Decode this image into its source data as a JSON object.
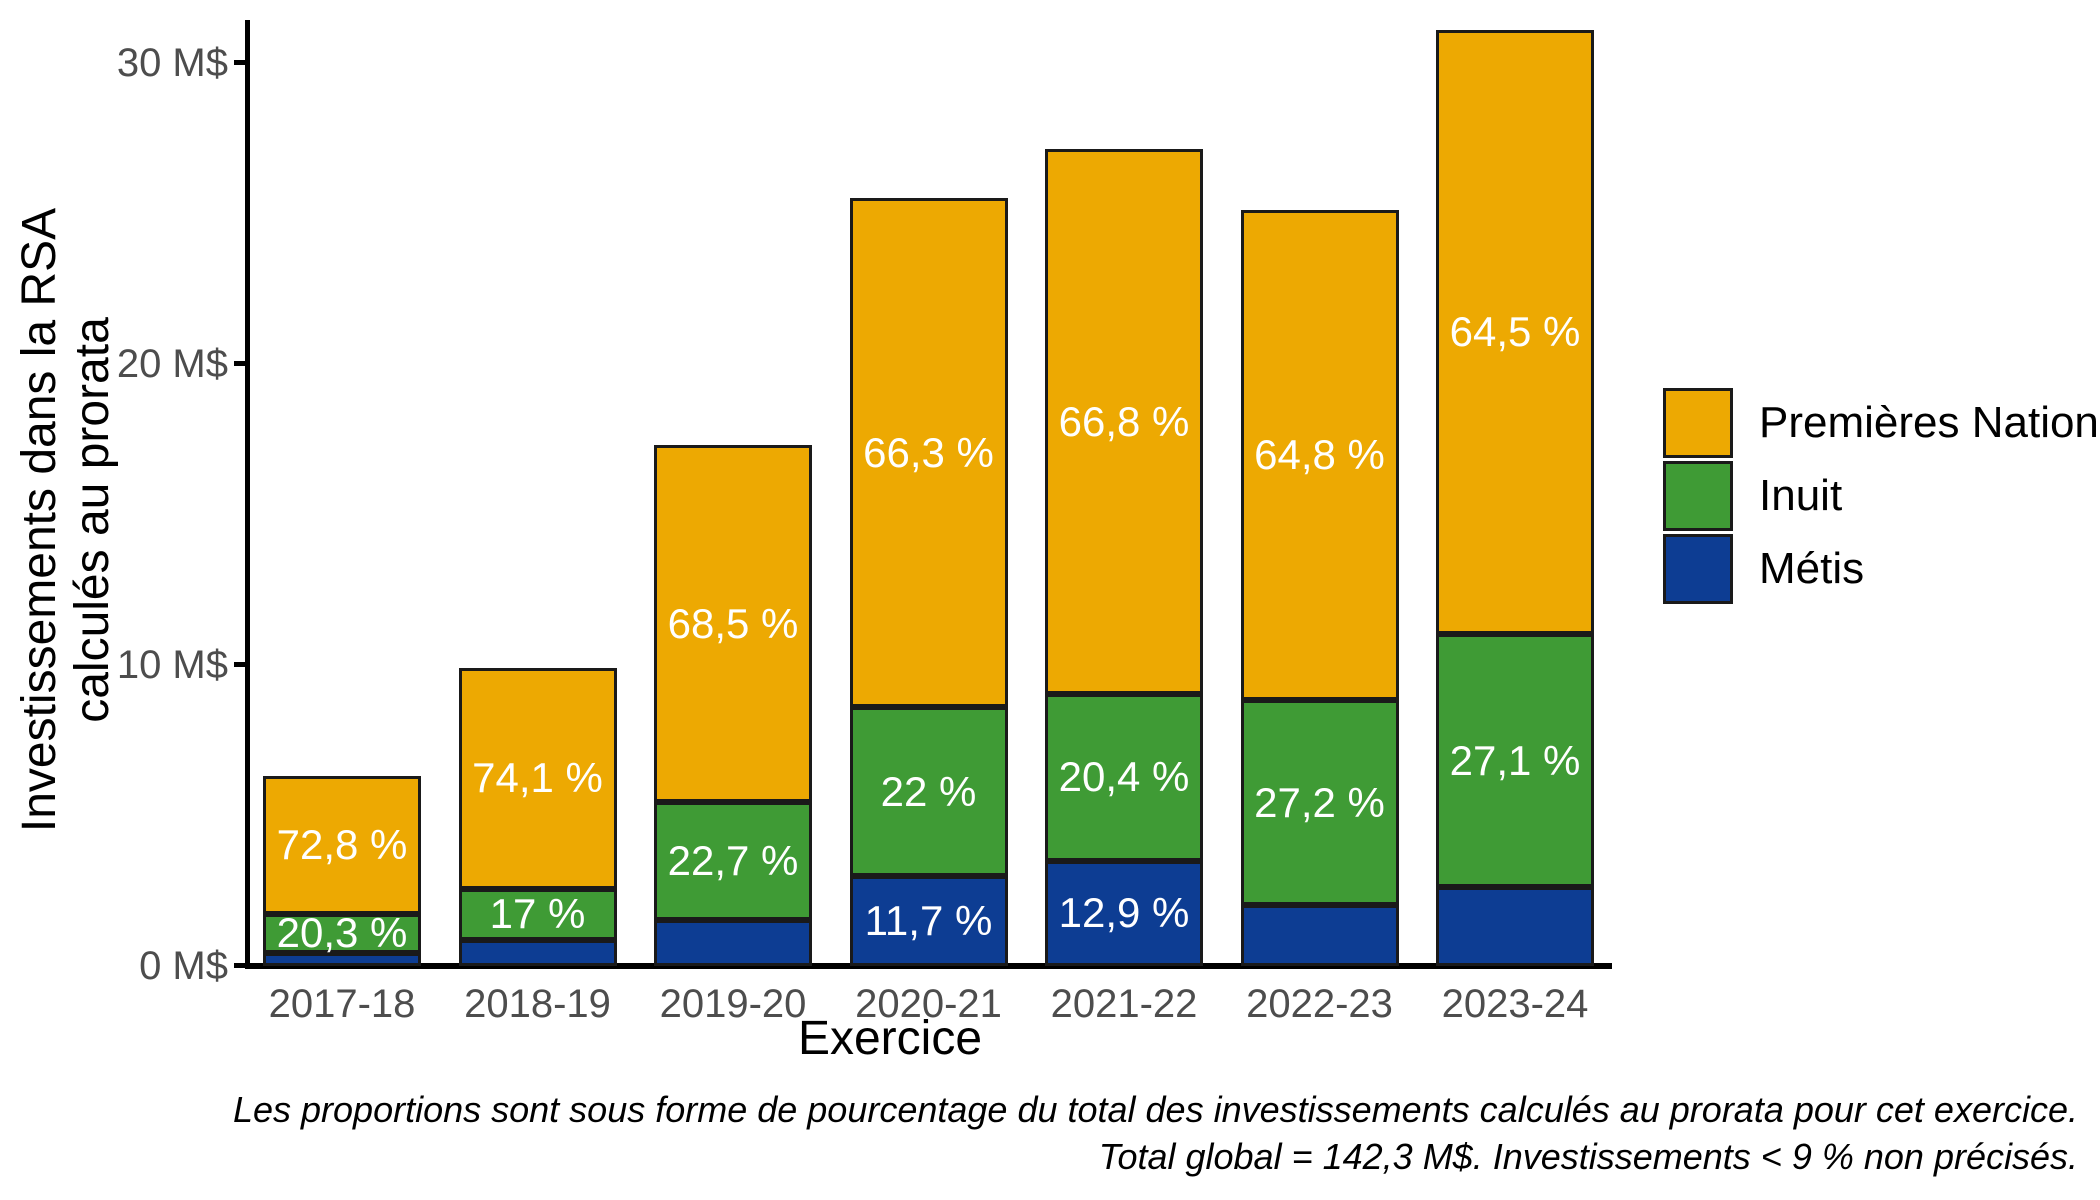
{
  "axes": {
    "y": {
      "title_lines": [
        "Investissements dans la RSA",
        "calculés au prorata"
      ],
      "tick_labels": [
        "0 M$",
        "10 M$",
        "20 M$",
        "30 M$"
      ]
    },
    "x": {
      "title": "Exercice"
    }
  },
  "legend": {
    "items": [
      {
        "label": "Premières Nations",
        "color": "#EDA902"
      },
      {
        "label": "Inuit",
        "color": "#3F9B35"
      },
      {
        "label": "Métis",
        "color": "#0D3D93"
      }
    ]
  },
  "caption": {
    "line1": "Les proportions sont sous forme de pourcentage du total des investissements calculés au prorata pour cet exercice.",
    "line2": "Total global = 142,3 M$. Investissements < 9 % non précisés."
  },
  "chart_data": {
    "type": "bar",
    "stacked": true,
    "title": "",
    "xlabel": "Exercice",
    "ylabel": "Investissements dans la RSA calculés au prorata",
    "unit": "M$",
    "ylim": [
      0,
      31.5
    ],
    "grid": false,
    "legend_position": "right",
    "y_ticks": [
      {
        "value": 0,
        "label": "0 M$"
      },
      {
        "value": 10,
        "label": "10 M$"
      },
      {
        "value": 20,
        "label": "20 M$"
      },
      {
        "value": 30,
        "label": "30 M$"
      }
    ],
    "categories": [
      "2017-18",
      "2018-19",
      "2019-20",
      "2020-21",
      "2021-22",
      "2022-23",
      "2023-24"
    ],
    "totals_millions": [
      6.3,
      9.9,
      17.3,
      25.5,
      27.1,
      25.1,
      31.1
    ],
    "total_global_label": "142,3 M$",
    "series": [
      {
        "name": "Métis",
        "color": "#0D3D93",
        "values": [
          0.44,
          0.88,
          1.52,
          2.98,
          3.5,
          2.01,
          2.61
        ],
        "labels": [
          null,
          null,
          null,
          "11,7 %",
          "12,9 %",
          null,
          null
        ]
      },
      {
        "name": "Inuit",
        "color": "#3F9B35",
        "values": [
          1.28,
          1.68,
          3.93,
          5.61,
          5.53,
          6.83,
          8.43
        ],
        "labels": [
          "20,3 %",
          "17 %",
          "22,7 %",
          "22 %",
          "20,4 %",
          "27,2 %",
          "27,1 %"
        ]
      },
      {
        "name": "Premières Nations",
        "color": "#EDA902",
        "values": [
          4.59,
          7.34,
          11.85,
          16.91,
          18.1,
          16.26,
          20.06
        ],
        "labels": [
          "72,8 %",
          "74,1 %",
          "68,5 %",
          "66,3 %",
          "66,8 %",
          "64,8 %",
          "64,5 %"
        ]
      }
    ]
  }
}
